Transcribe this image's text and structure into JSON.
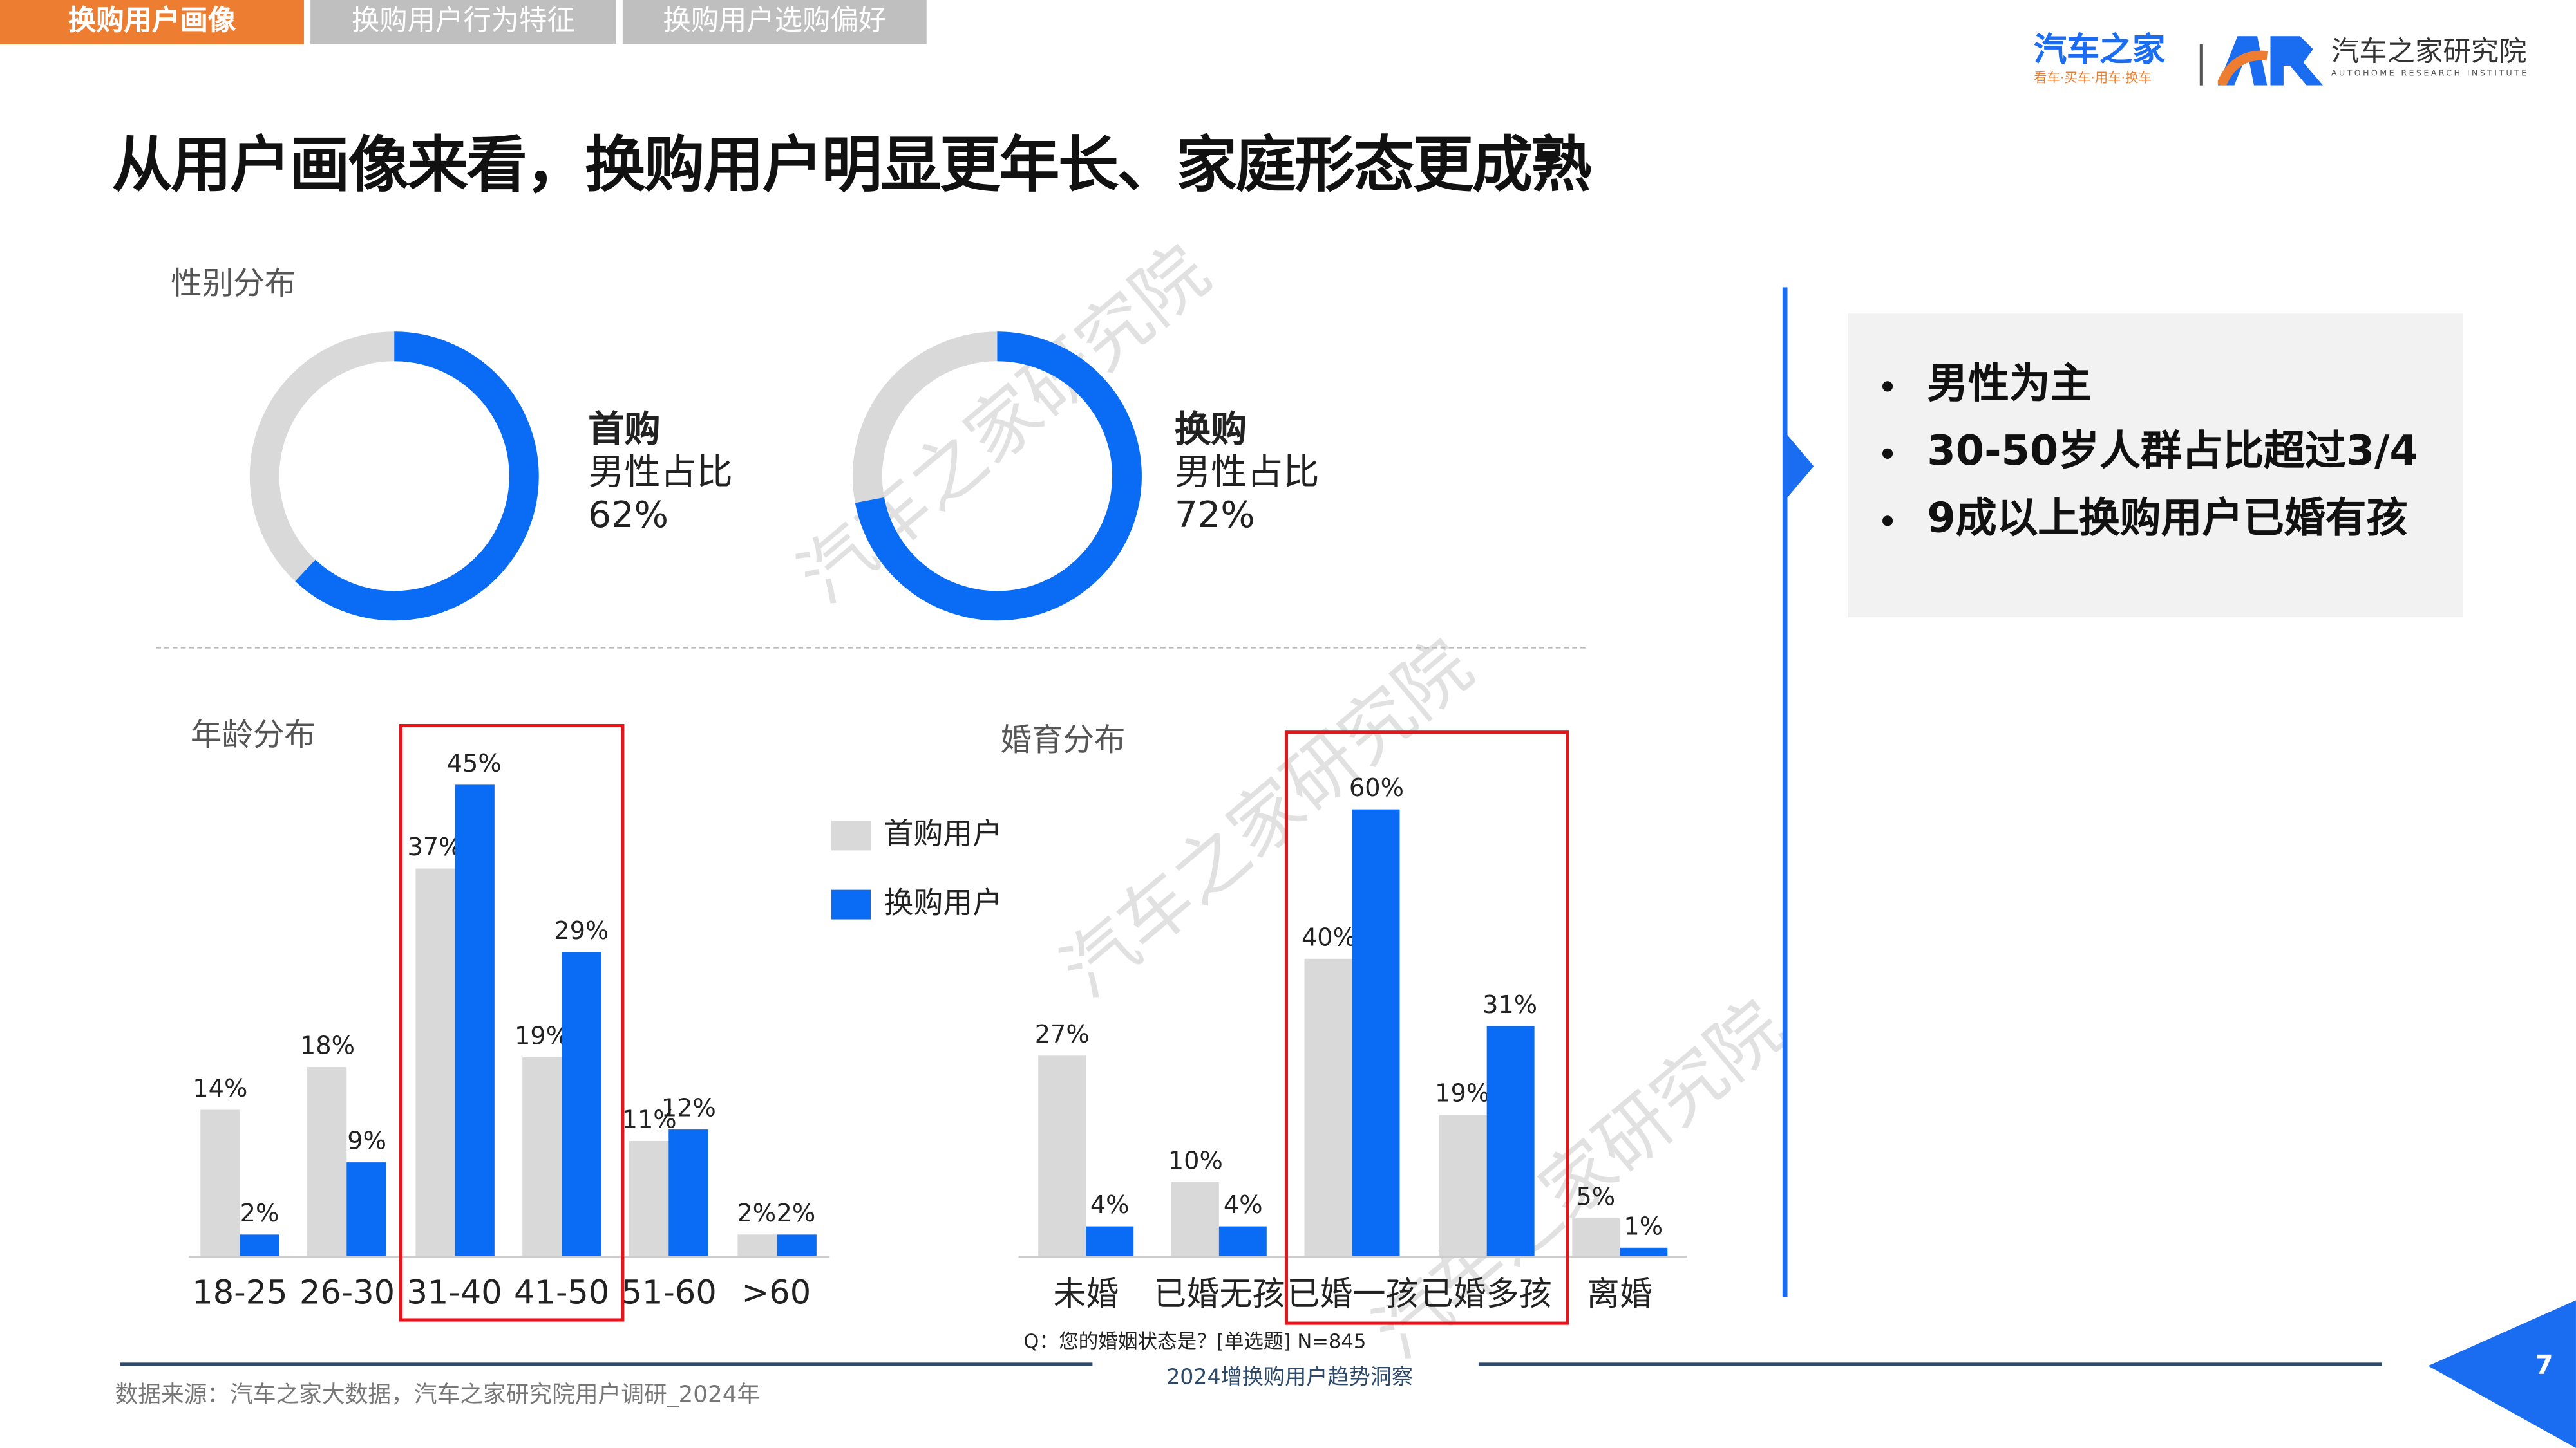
{
  "tabs": [
    {
      "label": "换购用户画像",
      "active": true
    },
    {
      "label": "换购用户行为特征",
      "active": false
    },
    {
      "label": "换购用户选购偏好",
      "active": false
    }
  ],
  "logo": {
    "brand": "汽车之家",
    "slogan": "看车·买车·用车·换车",
    "institute": "汽车之家研究院",
    "institute_en": "AUTOHOME RESEARCH INSTITUTE"
  },
  "title": "从用户画像来看，换购用户明显更年长、家庭形态更成熟",
  "colors": {
    "first": "#d9d9d9",
    "repeat": "#0a6cf5",
    "accent": "#ed7d31",
    "tab_inactive": "#bfbfbf",
    "highlight": "#e4161b"
  },
  "gender": {
    "title": "性别分布",
    "donuts": [
      {
        "name": "首购",
        "label": "男性占比",
        "value_text": "62%",
        "value": 62
      },
      {
        "name": "换购",
        "label": "男性占比",
        "value_text": "72%",
        "value": 72
      }
    ]
  },
  "legend": {
    "first": "首购用户",
    "repeat": "换购用户"
  },
  "chart_data": [
    {
      "type": "bar",
      "title": "年龄分布",
      "categories": [
        "18-25",
        "26-30",
        "31-40",
        "41-50",
        "51-60",
        ">60"
      ],
      "series": [
        {
          "name": "首购用户",
          "values": [
            14,
            18,
            37,
            19,
            11,
            2
          ]
        },
        {
          "name": "换购用户",
          "values": [
            2,
            9,
            45,
            29,
            12,
            2
          ]
        }
      ],
      "highlight": [
        "31-40",
        "41-50"
      ]
    },
    {
      "type": "bar",
      "title": "婚育分布",
      "categories": [
        "未婚",
        "已婚无孩",
        "已婚一孩",
        "已婚多孩",
        "离婚"
      ],
      "series": [
        {
          "name": "首购用户",
          "values": [
            27,
            10,
            40,
            19,
            5
          ]
        },
        {
          "name": "换购用户",
          "values": [
            4,
            4,
            60,
            31,
            1
          ]
        }
      ],
      "highlight": [
        "已婚一孩",
        "已婚多孩"
      ]
    }
  ],
  "question": "Q：您的婚姻状态是？[单选题] N=845",
  "summary": [
    "男性为主",
    "30-50岁人群占比超过3/4",
    "9成以上换购用户已婚有孩"
  ],
  "footer": {
    "source": "数据来源：汽车之家大数据，汽车之家研究院用户调研_2024年",
    "report": "2024增换购用户趋势洞察",
    "page": "7"
  },
  "watermark": "汽车之家研究院"
}
